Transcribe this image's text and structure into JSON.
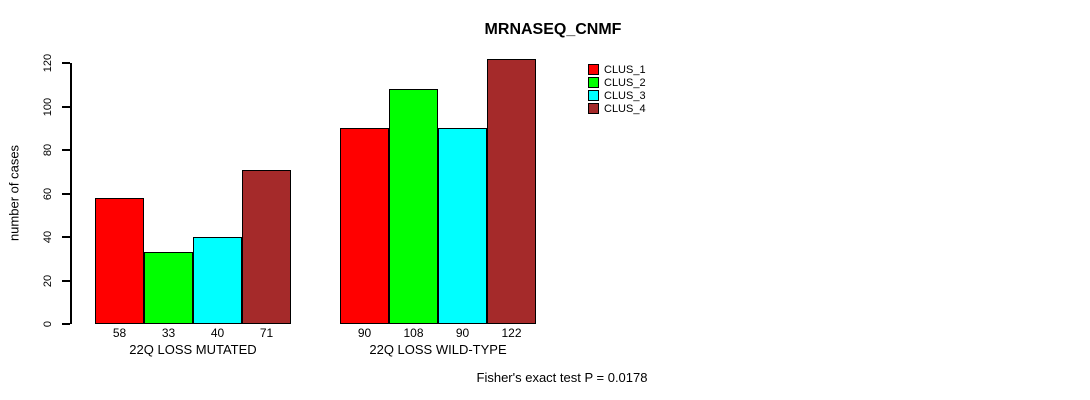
{
  "title": "MRNASEQ_CNMF",
  "caption": "Fisher's exact test P = 0.0178",
  "chart_data": {
    "type": "bar",
    "title": "MRNASEQ_CNMF",
    "xlabel": "",
    "ylabel": "number of cases",
    "ylim": [
      0,
      120
    ],
    "yticks": [
      0,
      20,
      40,
      60,
      80,
      100,
      120
    ],
    "grid": false,
    "legend_position": "top-right",
    "categories": [
      "22Q LOSS MUTATED",
      "22Q LOSS WILD-TYPE"
    ],
    "series": [
      {
        "name": "CLUS_1",
        "color": "#FF0000",
        "values": [
          58,
          90
        ]
      },
      {
        "name": "CLUS_2",
        "color": "#00FF00",
        "values": [
          33,
          108
        ]
      },
      {
        "name": "CLUS_3",
        "color": "#00FFFF",
        "values": [
          40,
          90
        ]
      },
      {
        "name": "CLUS_4",
        "color": "#A52A2A",
        "values": [
          71,
          122
        ]
      }
    ],
    "bar_value_labels": [
      [
        "58",
        "33",
        "40",
        "71"
      ],
      [
        "90",
        "108",
        "90",
        "122"
      ]
    ],
    "annotation": "Fisher's exact test P = 0.0178"
  }
}
